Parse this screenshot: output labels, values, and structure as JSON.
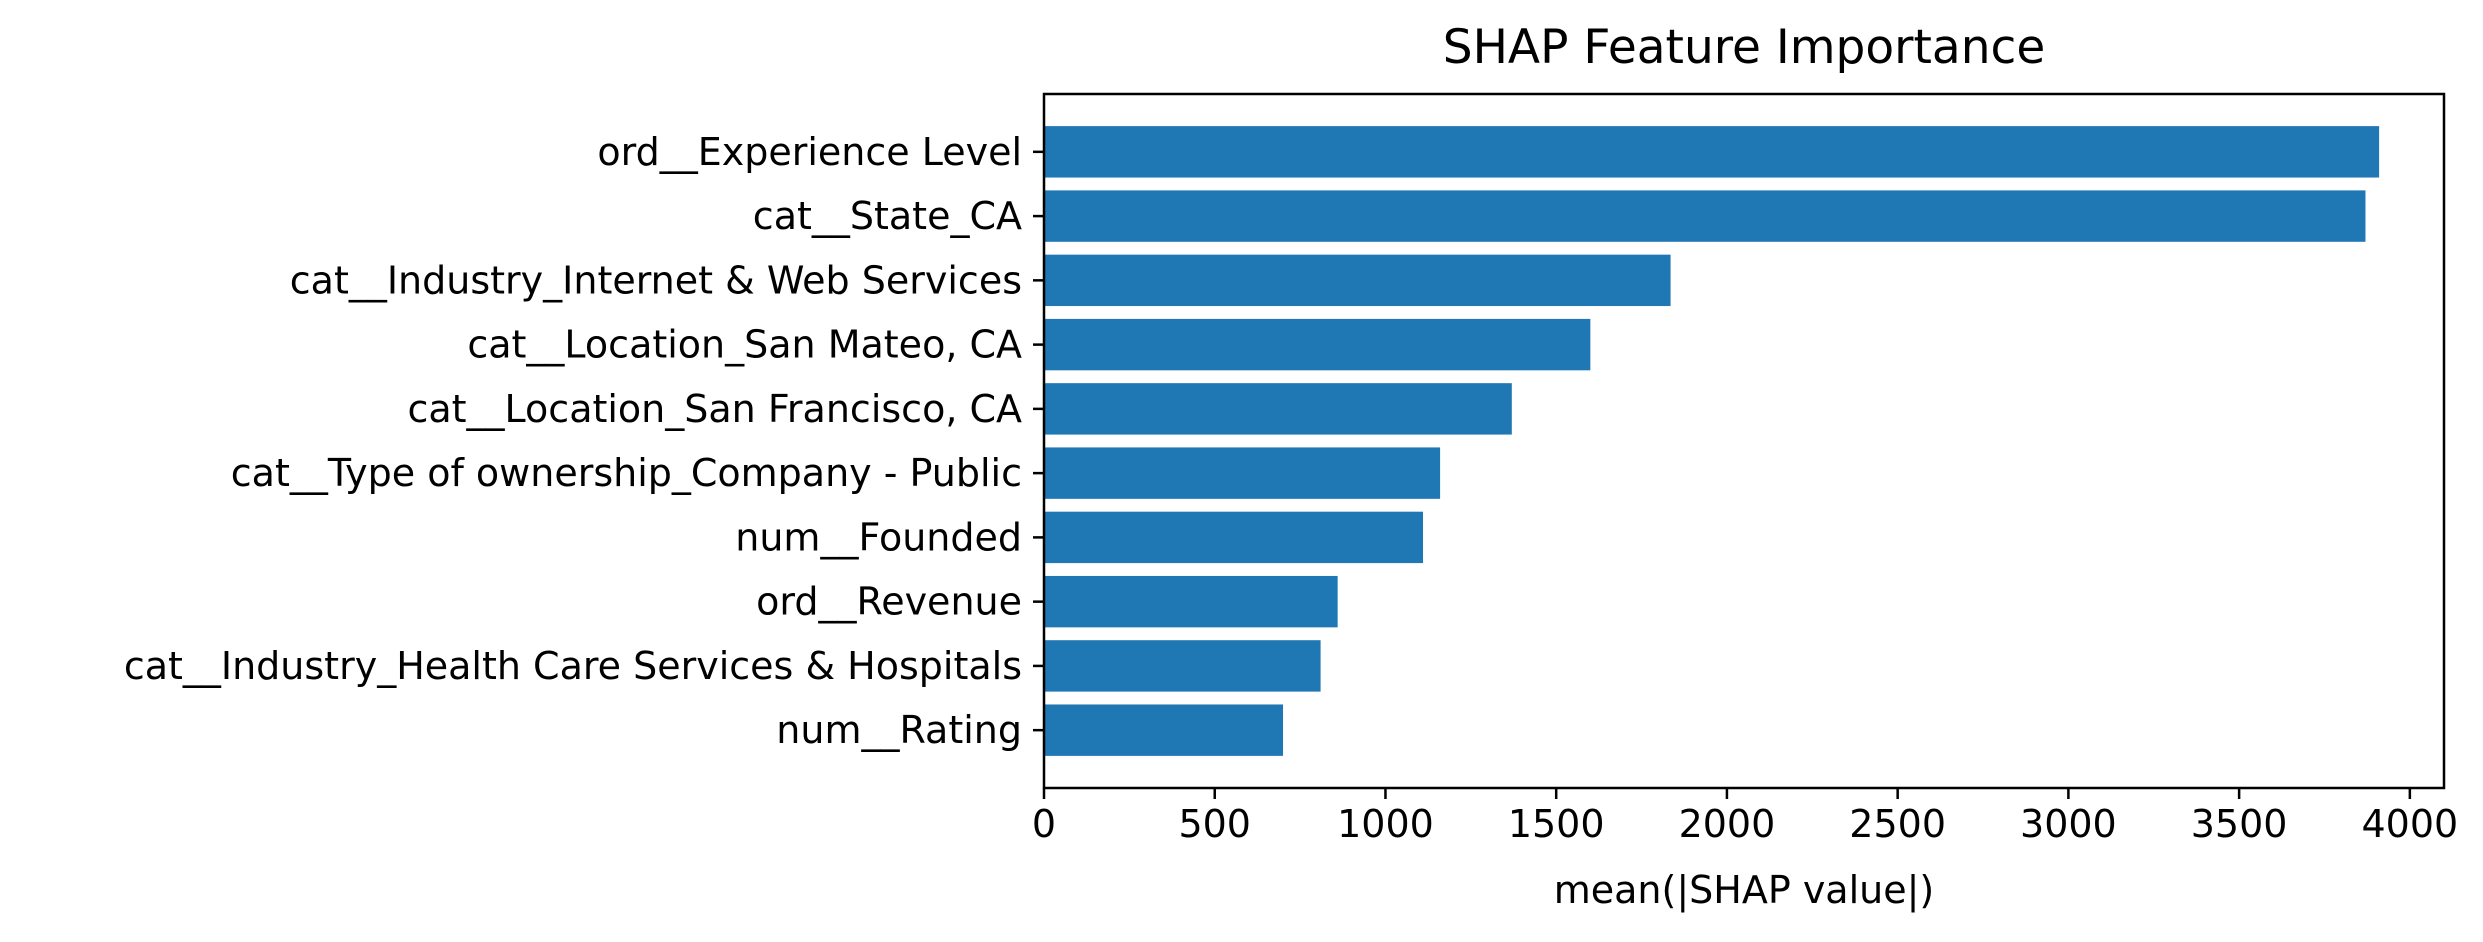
{
  "chart_data": {
    "type": "bar",
    "orientation": "horizontal",
    "title": "SHAP Feature Importance",
    "xlabel": "mean(|SHAP value|)",
    "ylabel": "",
    "xlim": [
      0,
      4100
    ],
    "xticks": [
      "0",
      "500",
      "1000",
      "1500",
      "2000",
      "2500",
      "3000",
      "3500",
      "4000"
    ],
    "grid": false,
    "bar_color": "#1f77b4",
    "categories": [
      "ord__Experience Level",
      "cat__State_CA",
      "cat__Industry_Internet & Web Services",
      "cat__Location_San Mateo, CA",
      "cat__Location_San Francisco, CA",
      "cat__Type of ownership_Company - Public",
      "num__Founded",
      "ord__Revenue",
      "cat__Industry_Health Care Services & Hospitals",
      "num__Rating"
    ],
    "values": [
      3910,
      3870,
      1835,
      1600,
      1370,
      1160,
      1110,
      860,
      810,
      700
    ]
  }
}
